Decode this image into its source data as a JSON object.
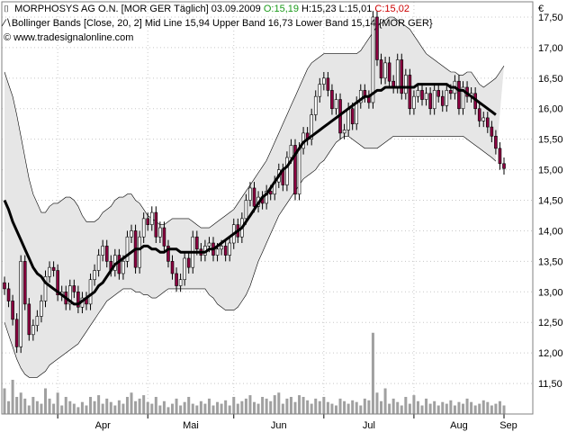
{
  "header": {
    "line1": {
      "symbol": "MORPHOSYS AG O.N. [MOR GER  Täglich]",
      "date": "03.09.2009",
      "open_label": "O:",
      "open": "15,19",
      "high": "H:15,23",
      "low": "L:15,01",
      "close_label": "C:",
      "close": "15,02"
    },
    "line2": "Bollinger Bands [Close, 20, 2] Mid Line 15,94 Upper Band 16,73 Lower Band 15,14 {MOR GER}",
    "line3": "www.tradesignalonline.com",
    "currency": "€"
  },
  "colors": {
    "up_candle": "#ffffff",
    "down_candle": "#8b0040",
    "band_fill": "#e6e6e6",
    "band_edge": "#000000",
    "mid_line": "#000000",
    "volume": "#a0a0a0"
  },
  "chart_data": {
    "type": "candlestick",
    "y_ticks": [
      "11,50",
      "12,00",
      "12,50",
      "13,00",
      "13,50",
      "14,00",
      "14,50",
      "15,00",
      "15,50",
      "16,00",
      "16,50",
      "17,00",
      "17,50"
    ],
    "ylim": [
      11.0,
      17.75
    ],
    "x_ticks": [
      "Apr",
      "Mai",
      "Jun",
      "Jul",
      "Aug",
      "Sep"
    ],
    "grid": true,
    "close": [
      13.05,
      12.85,
      12.55,
      12.1,
      13.5,
      12.8,
      12.3,
      12.45,
      12.6,
      12.85,
      13.25,
      13.4,
      13.35,
      12.95,
      13.0,
      12.8,
      13.1,
      13.0,
      12.75,
      12.9,
      12.8,
      13.2,
      13.35,
      13.6,
      13.75,
      13.5,
      13.35,
      13.6,
      13.3,
      13.5,
      13.9,
      14.0,
      13.4,
      13.9,
      14.2,
      14.1,
      14.3,
      13.9,
      14.05,
      13.75,
      13.5,
      13.3,
      13.1,
      13.2,
      13.55,
      13.4,
      13.9,
      13.7,
      13.6,
      13.75,
      13.8,
      13.6,
      13.7,
      13.75,
      13.6,
      13.8,
      14.1,
      13.9,
      14.2,
      14.5,
      14.7,
      14.4,
      14.55,
      14.45,
      14.65,
      14.6,
      14.8,
      15.0,
      14.75,
      15.2,
      15.4,
      14.6,
      15.35,
      15.6,
      15.5,
      15.9,
      16.2,
      16.4,
      16.5,
      16.3,
      16.0,
      16.15,
      15.6,
      15.65,
      16.0,
      15.75,
      16.1,
      16.3,
      16.2,
      16.1,
      17.5,
      16.8,
      16.5,
      16.75,
      16.45,
      16.35,
      16.8,
      16.25,
      16.55,
      16.0,
      16.2,
      16.3,
      16.15,
      16.25,
      16.0,
      16.3,
      16.2,
      16.05,
      16.3,
      16.25,
      16.45,
      16.0,
      16.35,
      16.2,
      16.25,
      16.0,
      15.8,
      15.85,
      15.7,
      15.55,
      15.35,
      15.1,
      15.02
    ],
    "upper_band": [
      16.6,
      16.4,
      16.2,
      15.9,
      15.55,
      15.2,
      14.85,
      14.6,
      14.45,
      14.3,
      14.3,
      14.4,
      14.45,
      14.45,
      14.5,
      14.55,
      14.55,
      14.5,
      14.4,
      14.25,
      14.15,
      14.15,
      14.15,
      14.2,
      14.3,
      14.35,
      14.4,
      14.5,
      14.55,
      14.55,
      14.6,
      14.6,
      14.5,
      14.45,
      14.35,
      14.25,
      14.2,
      14.15,
      14.1,
      14.1,
      14.15,
      14.2,
      14.2,
      14.2,
      14.2,
      14.2,
      14.15,
      14.1,
      14.05,
      14.05,
      14.05,
      14.1,
      14.15,
      14.2,
      14.25,
      14.3,
      14.35,
      14.45,
      14.55,
      14.65,
      14.75,
      14.85,
      14.95,
      15.05,
      15.15,
      15.3,
      15.45,
      15.6,
      15.75,
      15.9,
      16.05,
      16.2,
      16.35,
      16.5,
      16.65,
      16.75,
      16.8,
      16.85,
      16.9,
      16.9,
      16.9,
      16.9,
      16.9,
      16.9,
      16.9,
      16.9,
      16.9,
      16.95,
      17.05,
      17.15,
      17.25,
      17.35,
      17.4,
      17.45,
      17.5,
      17.5,
      17.45,
      17.4,
      17.35,
      17.3,
      17.2,
      17.1,
      17.0,
      16.9,
      16.85,
      16.8,
      16.75,
      16.7,
      16.65,
      16.6,
      16.6,
      16.55,
      16.55,
      16.6,
      16.6,
      16.5,
      16.4,
      16.35,
      16.4,
      16.45,
      16.5,
      16.6,
      16.7
    ],
    "mid_line": [
      14.5,
      14.35,
      14.15,
      14.0,
      13.85,
      13.7,
      13.55,
      13.4,
      13.3,
      13.25,
      13.15,
      13.1,
      13.05,
      13.0,
      12.95,
      12.9,
      12.85,
      12.8,
      12.8,
      12.85,
      12.9,
      12.95,
      13.0,
      13.1,
      13.15,
      13.25,
      13.35,
      13.45,
      13.5,
      13.55,
      13.6,
      13.65,
      13.7,
      13.7,
      13.75,
      13.75,
      13.7,
      13.7,
      13.65,
      13.65,
      13.7,
      13.7,
      13.7,
      13.65,
      13.65,
      13.65,
      13.65,
      13.65,
      13.65,
      13.65,
      13.7,
      13.7,
      13.75,
      13.8,
      13.85,
      13.9,
      13.95,
      14.0,
      14.05,
      14.15,
      14.25,
      14.35,
      14.45,
      14.55,
      14.6,
      14.7,
      14.8,
      14.9,
      15.0,
      15.05,
      15.15,
      15.25,
      15.35,
      15.45,
      15.5,
      15.55,
      15.6,
      15.65,
      15.7,
      15.75,
      15.8,
      15.85,
      15.9,
      15.95,
      16.0,
      16.05,
      16.1,
      16.15,
      16.2,
      16.2,
      16.25,
      16.3,
      16.3,
      16.35,
      16.35,
      16.35,
      16.35,
      16.35,
      16.35,
      16.35,
      16.35,
      16.4,
      16.4,
      16.4,
      16.4,
      16.4,
      16.4,
      16.4,
      16.4,
      16.35,
      16.35,
      16.3,
      16.3,
      16.25,
      16.2,
      16.15,
      16.1,
      16.05,
      16.0,
      15.95,
      15.9
    ],
    "lower_band": [
      12.5,
      12.3,
      12.1,
      11.9,
      11.75,
      11.65,
      11.6,
      11.6,
      11.6,
      11.65,
      11.7,
      11.8,
      11.85,
      11.9,
      11.95,
      12.0,
      12.05,
      12.1,
      12.15,
      12.25,
      12.35,
      12.45,
      12.55,
      12.65,
      12.75,
      12.85,
      12.9,
      12.95,
      13.0,
      13.05,
      13.05,
      13.05,
      13.0,
      13.0,
      12.95,
      12.95,
      12.9,
      12.9,
      12.95,
      13.0,
      13.05,
      13.05,
      13.05,
      13.05,
      13.05,
      13.05,
      13.05,
      13.05,
      13.05,
      13.05,
      12.95,
      12.9,
      12.8,
      12.75,
      12.7,
      12.7,
      12.7,
      12.75,
      12.85,
      12.95,
      13.1,
      13.3,
      13.5,
      13.65,
      13.8,
      13.95,
      14.1,
      14.25,
      14.35,
      14.45,
      14.55,
      14.65,
      14.75,
      14.85,
      14.9,
      14.95,
      15.0,
      15.1,
      15.15,
      15.25,
      15.35,
      15.45,
      15.5,
      15.55,
      15.55,
      15.5,
      15.45,
      15.4,
      15.35,
      15.35,
      15.35,
      15.35,
      15.4,
      15.45,
      15.5,
      15.55,
      15.55,
      15.55,
      15.55,
      15.55,
      15.55,
      15.55,
      15.55,
      15.55,
      15.55,
      15.55,
      15.55,
      15.55,
      15.55,
      15.55,
      15.55,
      15.55,
      15.55,
      15.5,
      15.45,
      15.4,
      15.35,
      15.3,
      15.25,
      15.2,
      15.14
    ],
    "volume": [
      0.3,
      0.15,
      0.4,
      0.2,
      0.25,
      0.18,
      0.1,
      0.2,
      0.15,
      0.12,
      0.3,
      0.18,
      0.12,
      0.25,
      0.1,
      0.2,
      0.15,
      0.12,
      0.08,
      0.14,
      0.1,
      0.2,
      0.15,
      0.22,
      0.12,
      0.18,
      0.14,
      0.1,
      0.16,
      0.12,
      0.2,
      0.25,
      0.15,
      0.18,
      0.22,
      0.14,
      0.12,
      0.2,
      0.1,
      0.15,
      0.08,
      0.12,
      0.18,
      0.1,
      0.14,
      0.2,
      0.12,
      0.1,
      0.15,
      0.12,
      0.18,
      0.1,
      0.14,
      0.12,
      0.16,
      0.1,
      0.2,
      0.12,
      0.15,
      0.18,
      0.22,
      0.14,
      0.12,
      0.2,
      0.18,
      0.15,
      0.22,
      0.25,
      0.12,
      0.18,
      0.2,
      0.14,
      0.22,
      0.2,
      0.16,
      0.12,
      0.18,
      0.15,
      0.2,
      0.14,
      0.12,
      0.1,
      0.18,
      0.15,
      0.12,
      0.16,
      0.14,
      0.1,
      0.18,
      0.16,
      0.95,
      0.25,
      0.15,
      0.3,
      0.12,
      0.18,
      0.14,
      0.1,
      0.2,
      0.12,
      0.22,
      0.15,
      0.1,
      0.18,
      0.12,
      0.15,
      0.1,
      0.14,
      0.12,
      0.16,
      0.1,
      0.14,
      0.12,
      0.18,
      0.14,
      0.1,
      0.12,
      0.16,
      0.14,
      0.1,
      0.12,
      0.15,
      0.1
    ]
  }
}
